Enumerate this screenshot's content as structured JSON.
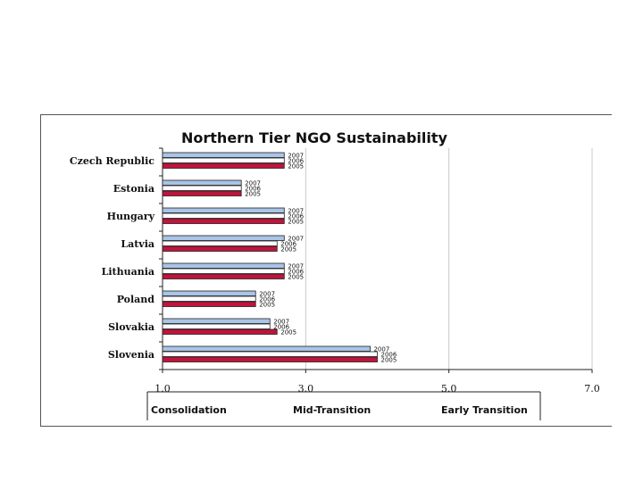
{
  "chart_data": {
    "type": "bar",
    "orientation": "horizontal",
    "title": "Northern Tier NGO Sustainability",
    "categories": [
      "Czech Republic",
      "Estonia",
      "Hungary",
      "Latvia",
      "Lithuania",
      "Poland",
      "Slovakia",
      "Slovenia"
    ],
    "series": [
      {
        "name": "2007",
        "color": "#a9c4e6",
        "values": [
          2.7,
          2.1,
          2.7,
          2.7,
          2.7,
          2.3,
          2.5,
          3.9
        ]
      },
      {
        "name": "2006",
        "color": "#ffffff",
        "values": [
          2.7,
          2.1,
          2.7,
          2.6,
          2.7,
          2.3,
          2.5,
          4.0
        ]
      },
      {
        "name": "2005",
        "color": "#c0143c",
        "values": [
          2.7,
          2.1,
          2.7,
          2.6,
          2.7,
          2.3,
          2.6,
          4.0
        ]
      }
    ],
    "bar_year_labels": [
      "2007",
      "2006",
      "2005"
    ],
    "xlim": [
      1.0,
      7.0
    ],
    "xticks": [
      "1.0",
      "3.0",
      "5.0",
      "7.0"
    ],
    "gridlines": true,
    "stages": [
      "Consolidation",
      "Mid-Transition",
      "Early Transition"
    ]
  }
}
